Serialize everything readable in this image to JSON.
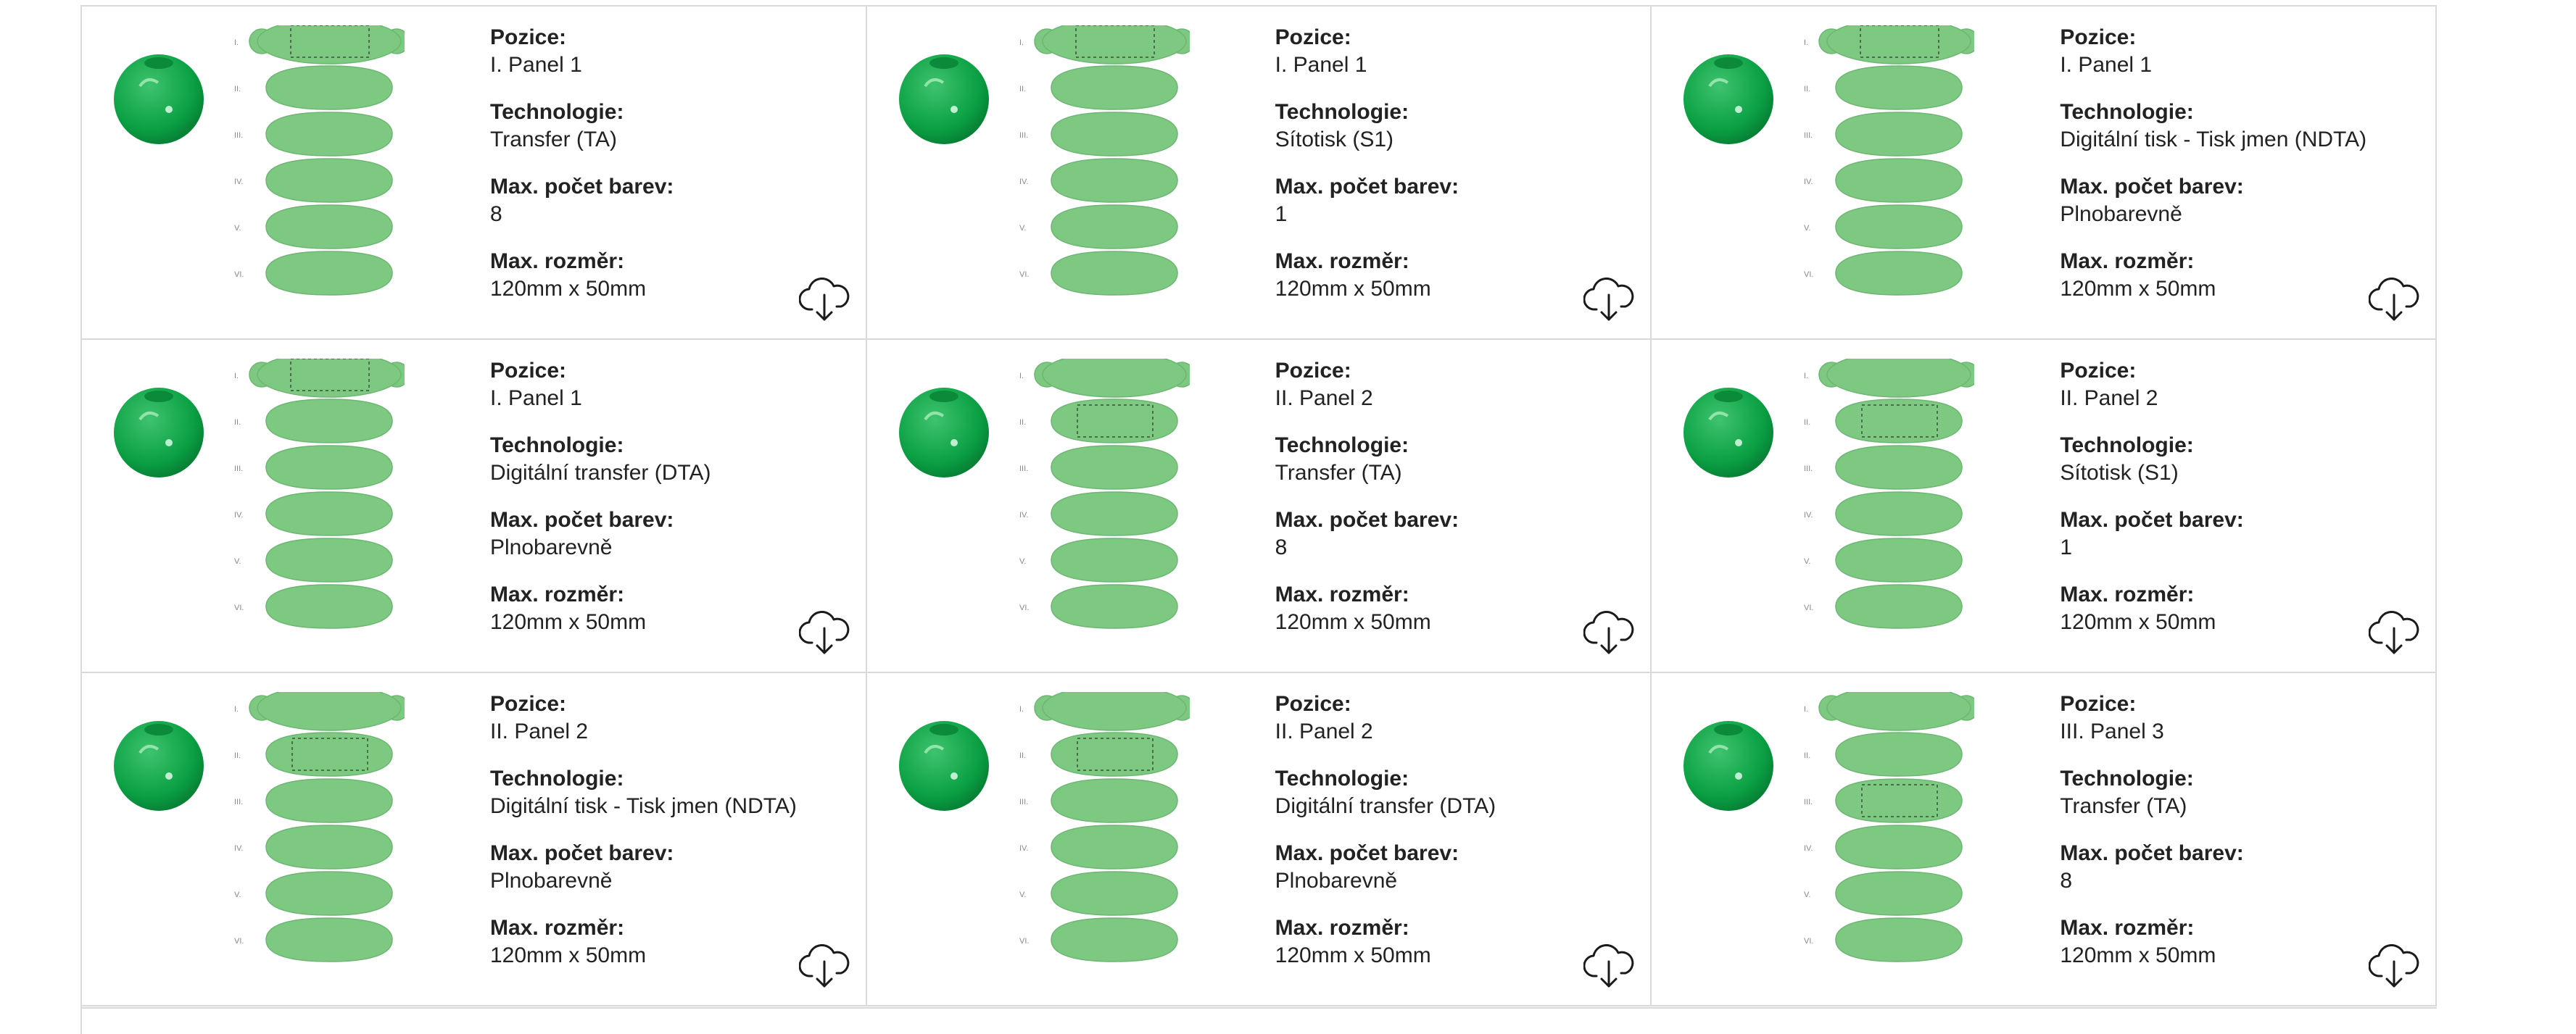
{
  "labels": {
    "position": "Pozice:",
    "technology": "Technologie:",
    "max_colors": "Max. počet barev:",
    "max_size": "Max. rozměr:"
  },
  "panel_row_markers": [
    "I.",
    "II.",
    "III.",
    "IV.",
    "V.",
    "VI."
  ],
  "colors": {
    "ball": "#0aa043",
    "panel": "#7ec982",
    "panel_stroke": "#6cb672",
    "border": "#d9d9d9"
  },
  "icons": {
    "download": "cloud-download-icon"
  },
  "cards": [
    {
      "position": "I. Panel 1",
      "technology": "Transfer (TA)",
      "max_colors": "8",
      "max_size": "120mm x 50mm",
      "highlight": 1
    },
    {
      "position": "I. Panel 1",
      "technology": "Sítotisk (S1)",
      "max_colors": "1",
      "max_size": "120mm x 50mm",
      "highlight": 1
    },
    {
      "position": "I. Panel 1",
      "technology": "Digitální tisk - Tisk jmen (NDTA)",
      "max_colors": "Plnobarevně",
      "max_size": "120mm x 50mm",
      "highlight": 1
    },
    {
      "position": "I. Panel 1",
      "technology": "Digitální transfer (DTA)",
      "max_colors": "Plnobarevně",
      "max_size": "120mm x 50mm",
      "highlight": 1
    },
    {
      "position": "II. Panel 2",
      "technology": "Transfer (TA)",
      "max_colors": "8",
      "max_size": "120mm x 50mm",
      "highlight": 2
    },
    {
      "position": "II. Panel 2",
      "technology": "Sítotisk (S1)",
      "max_colors": "1",
      "max_size": "120mm x 50mm",
      "highlight": 2
    },
    {
      "position": "II. Panel 2",
      "technology": "Digitální tisk - Tisk jmen (NDTA)",
      "max_colors": "Plnobarevně",
      "max_size": "120mm x 50mm",
      "highlight": 2
    },
    {
      "position": "II. Panel 2",
      "technology": "Digitální transfer (DTA)",
      "max_colors": "Plnobarevně",
      "max_size": "120mm x 50mm",
      "highlight": 2
    },
    {
      "position": "III. Panel 3",
      "technology": "Transfer (TA)",
      "max_colors": "8",
      "max_size": "120mm x 50mm",
      "highlight": 3
    }
  ]
}
